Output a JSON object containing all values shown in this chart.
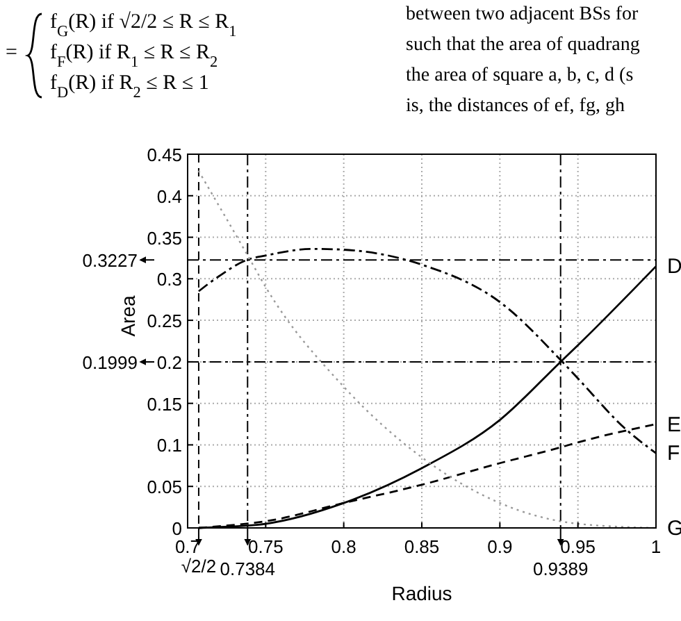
{
  "chart_data": {
    "type": "line",
    "xlabel": "Radius",
    "ylabel": "Area",
    "annotations": [
      "=",
      "f$_{G}$(R)      if √2/2 ≤ R ≤ R$_{1}$",
      "f$_{F}$(R)      if R$_{1}$ ≤ R ≤ R$_{2}$",
      "f$_{D}$(R)      if R$_{2}$ ≤ R ≤ 1",
      "between two adjacent BSs for",
      "such that the area of quadrang",
      "the area of square a, b, c, d (s",
      "is, the distances of ef, fg, gh"
    ],
    "xlim": [
      0.7,
      1
    ],
    "xticks": [
      0.7,
      0.75,
      0.8,
      0.85,
      0.9,
      0.95,
      1
    ],
    "ylim": [
      0,
      0.45
    ],
    "yticks": [
      0,
      0.05,
      0.1,
      0.15,
      0.2,
      0.25,
      0.3,
      0.35,
      0.4,
      0.45
    ],
    "grid": true,
    "legend": false,
    "marker": "none",
    "series": [
      {
        "name": "D",
        "color": "#000000",
        "line_style": "solid",
        "x": [
          0.7071,
          0.72,
          0.75,
          0.8,
          0.85,
          0.9,
          0.9389,
          0.95,
          1
        ],
        "values": [
          0,
          0.001,
          0.005,
          0.03,
          0.072,
          0.13,
          0.2,
          0.22,
          0.315
        ]
      },
      {
        "name": "E",
        "color": "#000000",
        "line_style": "dashed",
        "x": [
          0.7071,
          0.72,
          0.75,
          0.8,
          0.85,
          0.9,
          0.9389,
          0.95,
          1
        ],
        "values": [
          0,
          0.002,
          0.008,
          0.03,
          0.052,
          0.078,
          0.097,
          0.103,
          0.125
        ]
      },
      {
        "name": "F",
        "color": "#000000",
        "line_style": "dashdot",
        "x": [
          0.7071,
          0.72,
          0.7384,
          0.75,
          0.78,
          0.8,
          0.85,
          0.9,
          0.94,
          0.95,
          0.98,
          1
        ],
        "values": [
          0.285,
          0.303,
          0.323,
          0.328,
          0.336,
          0.335,
          0.317,
          0.272,
          0.2,
          0.18,
          0.12,
          0.09
        ]
      },
      {
        "name": "G",
        "color": "#999999",
        "line_style": "dotted",
        "x": [
          0.707,
          0.74,
          0.75,
          0.8,
          0.85,
          0.9,
          0.95,
          1
        ],
        "values": [
          0.43,
          0.323,
          0.29,
          0.17,
          0.085,
          0.03,
          0.005,
          0
        ]
      }
    ],
    "ref_lines": [
      {
        "axis": "x",
        "value": 0.7071,
        "label": "√2/2",
        "line_style": "dashed"
      },
      {
        "axis": "x",
        "value": 0.7384,
        "label": "0.7384",
        "line_style": "dashdot"
      },
      {
        "axis": "x",
        "value": 0.9389,
        "label": "0.9389",
        "line_style": "dashdot"
      },
      {
        "axis": "y",
        "value": 0.3227,
        "label": "0.3227",
        "line_style": "dashdot"
      },
      {
        "axis": "y",
        "value": 0.1999,
        "label": "0.1999",
        "line_style": "dashdot"
      }
    ]
  }
}
